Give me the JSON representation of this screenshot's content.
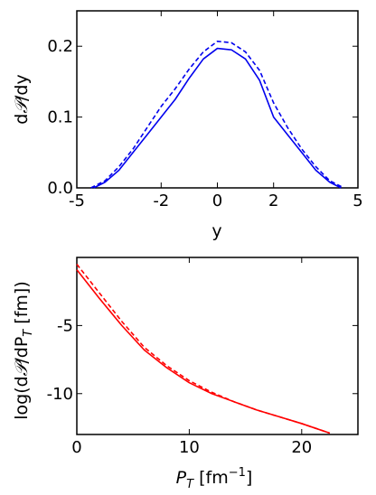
{
  "chart_data": [
    {
      "type": "line",
      "xlabel": "y",
      "ylabel": "dP/dy",
      "ylabel_parts": {
        "pre": "d",
        "script": "𝒫",
        "post": "/dy"
      },
      "xlim": [
        -5,
        5
      ],
      "ylim": [
        0,
        0.25
      ],
      "xticks": [
        -5,
        -2,
        0,
        2,
        5
      ],
      "xtick_labels": [
        "-5",
        "-2",
        "0",
        "2",
        "5"
      ],
      "yticks": [
        0.0,
        0.1,
        0.2
      ],
      "ytick_labels": [
        "0.0",
        "0.1",
        "0.2"
      ],
      "grid": false,
      "series": [
        {
          "style": "solid",
          "color": "#0000ee",
          "x": [
            -4.4,
            -4.0,
            -3.5,
            -3.0,
            -2.5,
            -2.0,
            -1.5,
            -1.0,
            -0.5,
            0.0,
            0.5,
            1.0,
            1.5,
            2.0,
            2.5,
            3.0,
            3.5,
            4.0,
            4.4
          ],
          "y": [
            0.0,
            0.008,
            0.025,
            0.05,
            0.075,
            0.1,
            0.125,
            0.155,
            0.182,
            0.197,
            0.195,
            0.182,
            0.152,
            0.1,
            0.075,
            0.05,
            0.025,
            0.008,
            0.0
          ]
        },
        {
          "style": "dashed",
          "color": "#0000ee",
          "x": [
            -4.5,
            -4.0,
            -3.5,
            -3.0,
            -2.5,
            -2.0,
            -1.5,
            -1.0,
            -0.5,
            0.0,
            0.5,
            1.0,
            1.5,
            2.0,
            2.5,
            3.0,
            3.5,
            4.0,
            4.5
          ],
          "y": [
            0.0,
            0.01,
            0.03,
            0.055,
            0.085,
            0.115,
            0.14,
            0.168,
            0.192,
            0.207,
            0.205,
            0.192,
            0.166,
            0.12,
            0.085,
            0.055,
            0.03,
            0.01,
            0.0
          ]
        }
      ]
    },
    {
      "type": "line",
      "xlabel": "P_T [fm^-1]",
      "xlabel_parts": {
        "var": "P",
        "sub": "T",
        "unit_pre": " [fm",
        "unit_sup": "−1",
        "unit_post": "]"
      },
      "ylabel": "log(dP/dP_T [fm])",
      "ylabel_parts": {
        "pre": "log(d",
        "script": "𝒫",
        "mid": "/dP",
        "sub": "T",
        "post": " [fm])"
      },
      "xlim": [
        0,
        25
      ],
      "ylim": [
        -13,
        0
      ],
      "xticks": [
        0,
        10,
        20
      ],
      "xtick_labels": [
        "0",
        "10",
        "20"
      ],
      "yticks": [
        -5,
        -10
      ],
      "ytick_labels": [
        "-5",
        "-10"
      ],
      "grid": false,
      "series": [
        {
          "style": "solid",
          "color": "#ff0000",
          "x": [
            0,
            2,
            4,
            6,
            8,
            10,
            12,
            14,
            16,
            18,
            20,
            22.5
          ],
          "y": [
            -0.9,
            -3.0,
            -5.0,
            -6.8,
            -8.1,
            -9.2,
            -10.0,
            -10.6,
            -11.2,
            -11.7,
            -12.2,
            -12.9
          ]
        },
        {
          "style": "dashed",
          "color": "#ff0000",
          "x": [
            0,
            2,
            4,
            6,
            8,
            10,
            12,
            14,
            16,
            18,
            20,
            22.5
          ],
          "y": [
            -0.5,
            -2.6,
            -4.7,
            -6.6,
            -7.95,
            -9.05,
            -9.9,
            -10.6,
            -11.2,
            -11.7,
            -12.2,
            -12.9
          ]
        }
      ]
    }
  ]
}
